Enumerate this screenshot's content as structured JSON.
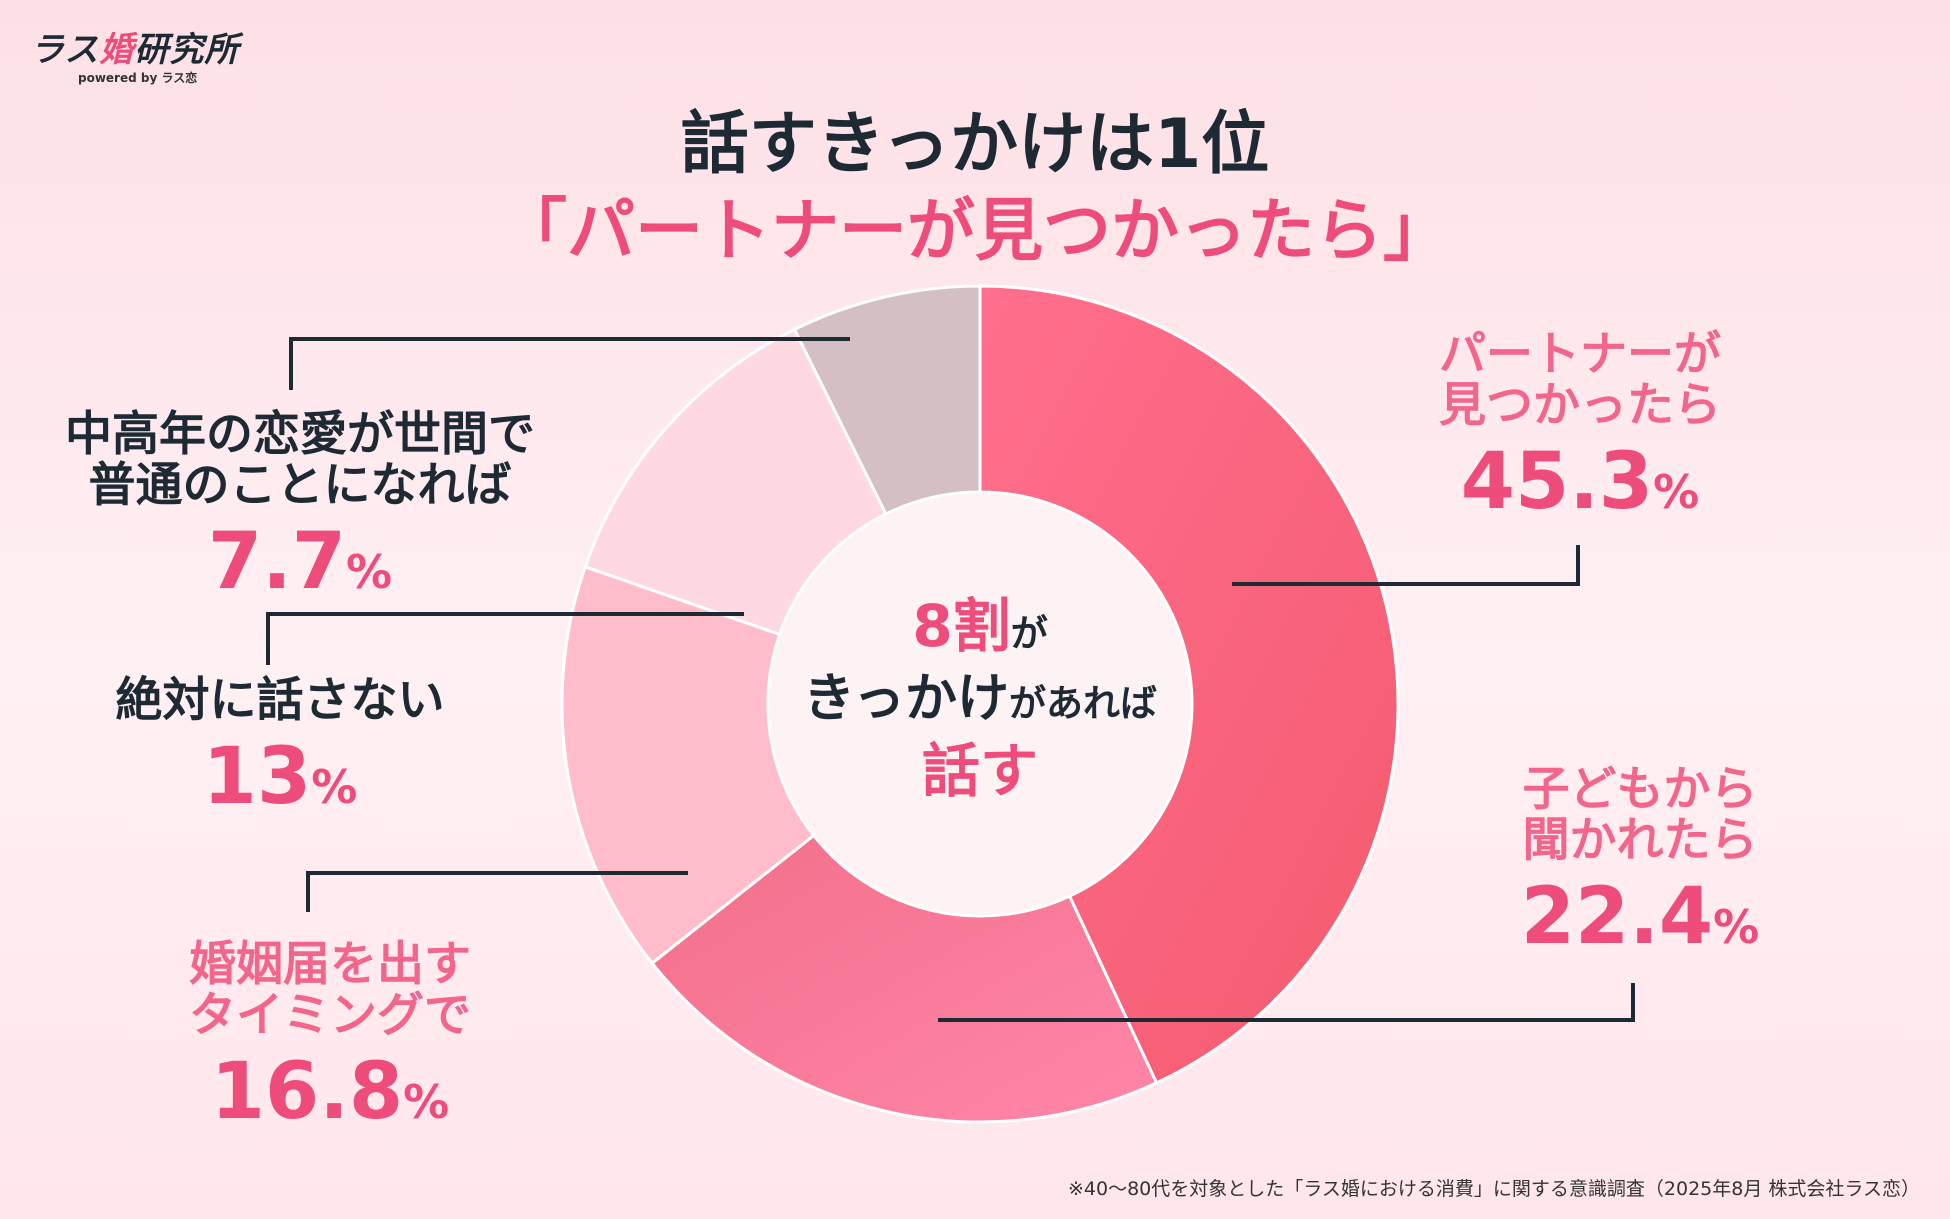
{
  "logo": {
    "prefix": "ラス",
    "accent": "婚",
    "suffix": "研究所",
    "sub": "powered by ラス恋"
  },
  "title": {
    "line1": "話すきっかけは1位",
    "line2": "「パートナーが見つかったら」"
  },
  "center": {
    "num": "8",
    "wari": "割",
    "ga1": "が",
    "kikkake": "きっかけ",
    "gaareba": "があれば",
    "hanasu": "話す"
  },
  "chart_data": {
    "type": "pie",
    "donut": true,
    "start_angle_deg": 0,
    "direction": "clockwise",
    "slices": [
      {
        "name": "パートナーが見つかったら",
        "value": 45.3,
        "color": "#f45a6e",
        "color2": "#ff6f8e"
      },
      {
        "name": "子どもから聞かれたら",
        "value": 22.4,
        "color": "#ff86a8",
        "color2": "#f26f8a"
      },
      {
        "name": "婚姻届を出すタイミングで",
        "value": 16.8,
        "color": "#ffbcca",
        "color2": "#ffbcca"
      },
      {
        "name": "絶対に話さない",
        "value": 13,
        "color": "#ffd9e1",
        "color2": "#ffd9e1"
      },
      {
        "name": "中高年の恋愛が世間で普通のことになれば",
        "value": 7.7,
        "color": "#d4bfc4",
        "color2": "#d4bfc4"
      }
    ]
  },
  "labels": [
    {
      "l1": "パートナーが",
      "l2": "見つかったら",
      "num": "45.3",
      "pct": "%"
    },
    {
      "l1": "子どもから",
      "l2": "聞かれたら",
      "num": "22.4",
      "pct": "%"
    },
    {
      "l1": "婚姻届を出す",
      "l2": "タイミングで",
      "num": "16.8",
      "pct": "%"
    },
    {
      "l1": "絶対に話さない",
      "num": "13",
      "pct": "%"
    },
    {
      "l1": "中高年の恋愛が世間で",
      "l2": "普通のことになれば",
      "num": "7.7",
      "pct": "%"
    }
  ],
  "footnote": "※40〜80代を対象とした「ラス婚における消費」に関する意識調査（2025年8月 株式会社ラス恋）",
  "colors": {
    "accent": "#ee4d7c",
    "dark": "#1e2a33",
    "line": "#1e2a33"
  }
}
